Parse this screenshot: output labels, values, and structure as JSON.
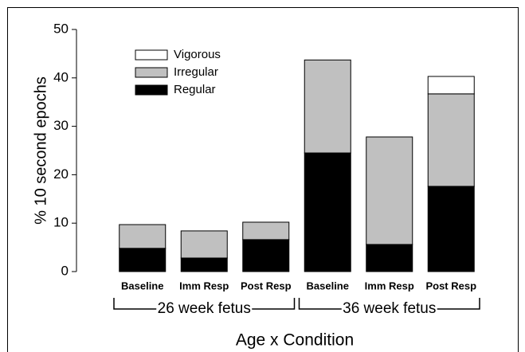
{
  "chart_data": {
    "type": "stacked_bar",
    "categories": [
      "Baseline",
      "Imm Resp",
      "Post Resp",
      "Baseline",
      "Imm Resp",
      "Post Resp"
    ],
    "groups": [
      "26 week fetus",
      "36 week fetus"
    ],
    "series": [
      {
        "name": "Regular",
        "color": "#000000",
        "values": [
          4.8,
          2.8,
          6.6,
          24.5,
          5.6,
          17.6
        ]
      },
      {
        "name": "Irregular",
        "color": "#c0c0c0",
        "values": [
          4.9,
          5.6,
          3.6,
          19.2,
          22.2,
          19.1
        ]
      },
      {
        "name": "Vigorous",
        "color": "#ffffff",
        "values": [
          0,
          0,
          0,
          0,
          0,
          3.6
        ]
      }
    ],
    "ylabel": "% 10 second epochs",
    "xlabel": "Age x Condition",
    "ylim": [
      0,
      50
    ],
    "yticks": [
      0,
      10,
      20,
      30,
      40,
      50
    ],
    "legend": "upper left"
  }
}
